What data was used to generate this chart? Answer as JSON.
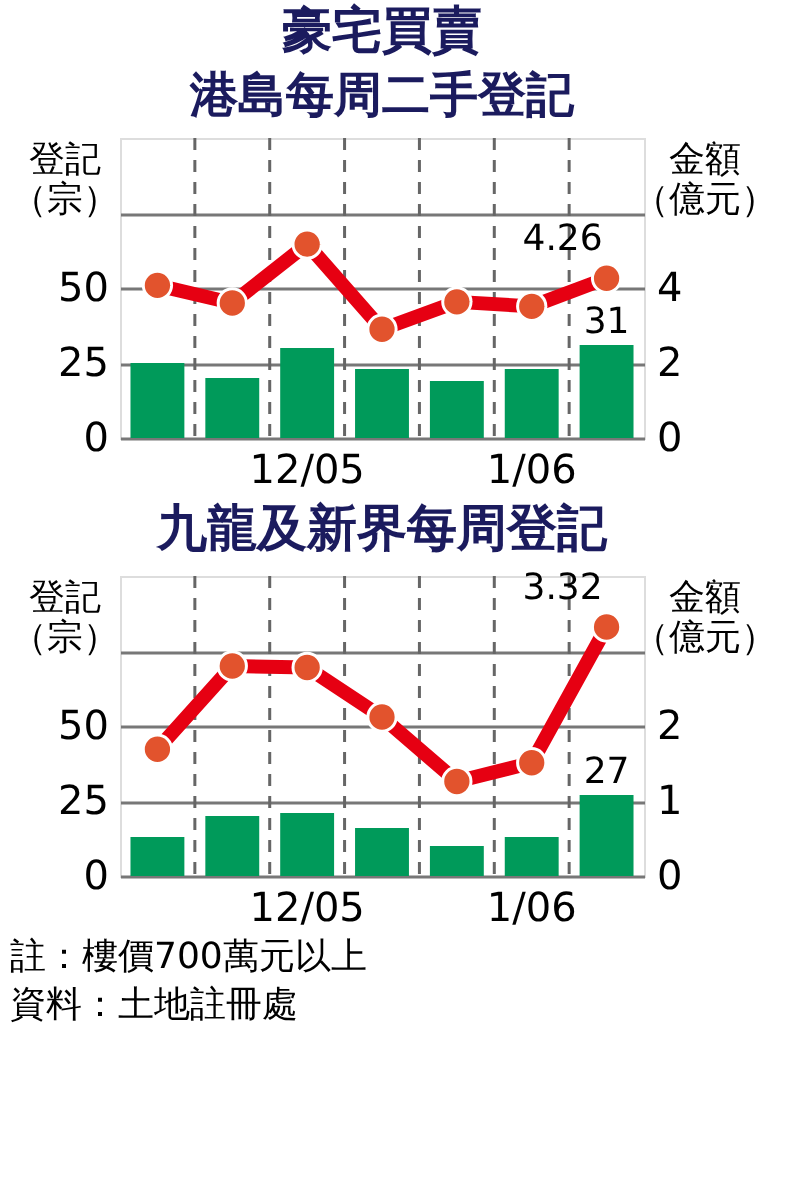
{
  "chart_data": [
    {
      "type": "bar",
      "title": "豪宅買賣",
      "subtitle": "港島每周二手登記",
      "ylabel": "登記（宗）",
      "y2label": "金額（億元）",
      "categories": [
        null,
        null,
        "12/05",
        null,
        null,
        "1/06",
        null
      ],
      "ylim": [
        0,
        100
      ],
      "yticks": [
        0,
        25,
        50,
        {
          "value": 75,
          "label": null
        }
      ],
      "y2lim": [
        0,
        8
      ],
      "y2ticks": [
        0,
        2,
        4
      ],
      "grid": true,
      "marker": "circle",
      "series": [
        {
          "color": "#009a5a",
          "values": [
            25,
            20,
            30,
            23,
            19,
            23,
            31
          ],
          "value_labels": [
            null,
            null,
            null,
            null,
            null,
            null,
            "31"
          ]
        },
        {
          "type": "line",
          "axis": "y2",
          "color": "#e60012",
          "values": [
            4.07,
            3.6,
            5.17,
            2.9,
            3.63,
            3.51,
            4.26
          ],
          "value_labels": [
            null,
            null,
            null,
            null,
            null,
            null,
            "4.26"
          ]
        }
      ]
    },
    {
      "type": "bar",
      "title": "九龍及新界每周登記",
      "ylabel": "登記（宗）",
      "y2label": "金額（億元）",
      "categories": [
        null,
        null,
        "12/05",
        null,
        null,
        "1/06",
        null
      ],
      "ylim": [
        0,
        100
      ],
      "yticks": [
        0,
        25,
        50,
        {
          "value": 75,
          "label": null
        }
      ],
      "y2lim": [
        0,
        4
      ],
      "y2ticks": [
        0,
        1,
        2
      ],
      "grid": true,
      "marker": "circle",
      "series": [
        {
          "color": "#009a5a",
          "values": [
            13,
            20,
            21,
            16,
            10,
            13,
            27
          ],
          "value_labels": [
            null,
            null,
            null,
            null,
            null,
            null,
            "27"
          ]
        },
        {
          "type": "line",
          "axis": "y2",
          "color": "#e60012",
          "values": [
            1.69,
            2.8,
            2.78,
            2.12,
            1.26,
            1.51,
            3.32
          ],
          "value_labels": [
            null,
            null,
            null,
            null,
            null,
            null,
            "3.32"
          ]
        }
      ],
      "annotations": [
        "註：樓價700萬元以上",
        "資料：土地註冊處"
      ]
    }
  ]
}
